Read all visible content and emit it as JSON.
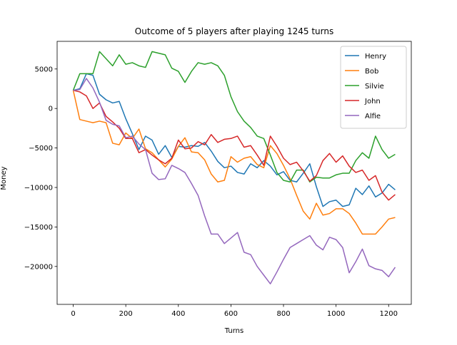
{
  "chart_data": {
    "type": "line",
    "title": "Outcome of 5 players after playing 1245 turns",
    "x_label": "Turns",
    "y_label": "Money",
    "x": [
      0,
      25,
      50,
      75,
      100,
      125,
      150,
      175,
      200,
      225,
      250,
      275,
      300,
      325,
      350,
      375,
      400,
      425,
      450,
      475,
      500,
      525,
      550,
      575,
      600,
      625,
      650,
      675,
      700,
      725,
      750,
      775,
      800,
      825,
      850,
      875,
      900,
      925,
      950,
      975,
      1000,
      1025,
      1050,
      1075,
      1100,
      1125,
      1150,
      1175,
      1200,
      1225
    ],
    "series": [
      {
        "name": "Henry",
        "color": "#1f77b4",
        "values": [
          2300,
          2500,
          4400,
          4200,
          1800,
          1100,
          700,
          900,
          -1300,
          -3200,
          -5200,
          -3500,
          -4000,
          -5800,
          -4700,
          -6200,
          -4800,
          -4900,
          -4700,
          -4800,
          -4300,
          -5400,
          -6700,
          -7500,
          -7300,
          -8100,
          -8300,
          -7000,
          -7500,
          -6600,
          -7300,
          -8400,
          -8000,
          -9100,
          -9300,
          -8200,
          -7000,
          -9900,
          -12400,
          -11800,
          -11600,
          -12400,
          -12200,
          -10100,
          -10900,
          -9800,
          -11200,
          -10700,
          -9600,
          -10300
        ]
      },
      {
        "name": "Bob",
        "color": "#ff7f0e",
        "values": [
          2300,
          -1400,
          -1600,
          -1800,
          -1600,
          -1800,
          -4400,
          -4600,
          -3100,
          -3800,
          -2600,
          -5100,
          -5600,
          -6500,
          -7400,
          -6400,
          -4800,
          -3700,
          -5500,
          -5600,
          -6500,
          -8300,
          -9300,
          -9100,
          -6100,
          -6800,
          -6300,
          -6100,
          -7100,
          -7500,
          -4700,
          -5700,
          -7200,
          -8900,
          -11000,
          -13000,
          -14000,
          -12000,
          -13500,
          -13300,
          -12700,
          -12700,
          -13300,
          -14500,
          -15900,
          -15900,
          -15900,
          -15000,
          -14000,
          -13800
        ]
      },
      {
        "name": "Silvie",
        "color": "#2ca02c",
        "values": [
          2300,
          4400,
          4400,
          4400,
          7200,
          6300,
          5400,
          6800,
          5600,
          5800,
          5400,
          5200,
          7200,
          7000,
          6800,
          5100,
          4700,
          3300,
          4700,
          5800,
          5600,
          5800,
          5400,
          4200,
          1500,
          -400,
          -1600,
          -2400,
          -3500,
          -3800,
          -5900,
          -8100,
          -9100,
          -9300,
          -7800,
          -7800,
          -9300,
          -8700,
          -8800,
          -8800,
          -8400,
          -8200,
          -8200,
          -6600,
          -5600,
          -6300,
          -3500,
          -5200,
          -6300,
          -5800
        ]
      },
      {
        "name": "John",
        "color": "#d62728",
        "values": [
          2300,
          2100,
          1600,
          0,
          700,
          -1000,
          -1700,
          -2500,
          -3800,
          -3800,
          -5600,
          -5200,
          -5900,
          -6500,
          -7000,
          -6300,
          -4000,
          -5100,
          -5000,
          -4200,
          -4600,
          -3300,
          -4300,
          -3900,
          -3800,
          -3500,
          -4900,
          -4700,
          -5900,
          -7200,
          -3500,
          -4800,
          -6300,
          -7100,
          -6800,
          -7900,
          -9200,
          -8500,
          -6600,
          -5700,
          -6800,
          -6000,
          -7300,
          -8100,
          -7800,
          -9100,
          -8500,
          -10600,
          -11600,
          -10900
        ]
      },
      {
        "name": "Alfie",
        "color": "#9467bd",
        "values": [
          2300,
          2400,
          3800,
          2600,
          800,
          -1500,
          -2000,
          -2200,
          -3700,
          -3500,
          -4500,
          -5200,
          -8200,
          -9000,
          -8900,
          -7200,
          -7600,
          -8100,
          -9500,
          -11000,
          -13600,
          -15900,
          -15900,
          -17100,
          -16400,
          -15700,
          -18200,
          -18500,
          -20000,
          -21100,
          -22200,
          -20700,
          -19100,
          -17600,
          -17100,
          -16600,
          -16100,
          -17300,
          -17900,
          -16300,
          -16600,
          -17600,
          -20800,
          -19400,
          -17800,
          -19900,
          -20300,
          -20500,
          -21300,
          -20100
        ]
      }
    ],
    "xlim": [
      -61.25,
      1286.25
    ],
    "xticks": [
      0,
      200,
      400,
      600,
      800,
      1000,
      1200
    ],
    "ylim": [
      -24800,
      8500
    ],
    "yticks": [
      {
        "value": -20000,
        "label": "−20000"
      },
      {
        "value": -15000,
        "label": "−15000"
      },
      {
        "value": -10000,
        "label": "−10000"
      },
      {
        "value": -5000,
        "label": "−5000"
      },
      0,
      5000
    ],
    "grid": false,
    "legend": "upper right"
  }
}
